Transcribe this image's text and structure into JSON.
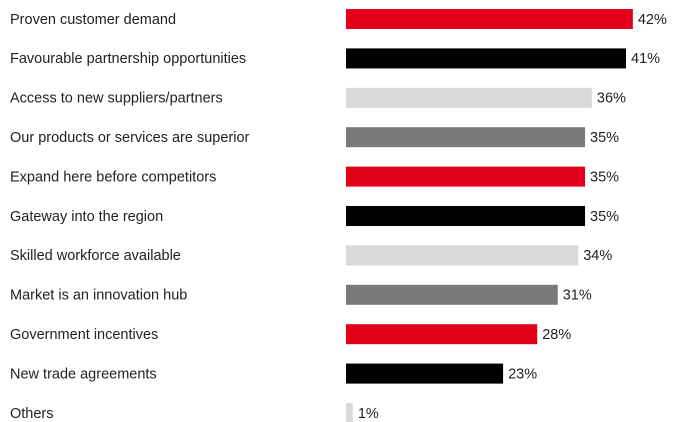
{
  "chart_data": {
    "type": "bar",
    "orientation": "horizontal",
    "categories": [
      "Proven customer demand",
      "Favourable partnership opportunities",
      "Access to new suppliers/partners",
      "Our products or services are superior",
      "Expand here before competitors",
      "Gateway into the region",
      "Skilled workforce available",
      "Market is an innovation hub",
      "Government incentives",
      "New trade agreements",
      "Others"
    ],
    "values": [
      42,
      41,
      36,
      35,
      35,
      35,
      34,
      31,
      28,
      23,
      1
    ],
    "value_labels": [
      "42%",
      "41%",
      "36%",
      "35%",
      "35%",
      "35%",
      "34%",
      "31%",
      "28%",
      "23%",
      "1%"
    ],
    "colors": [
      "#e2001a",
      "#000000",
      "#d9d9d9",
      "#7a7a7a",
      "#e2001a",
      "#000000",
      "#d9d9d9",
      "#7a7a7a",
      "#e2001a",
      "#000000",
      "#d9d9d9"
    ]
  }
}
